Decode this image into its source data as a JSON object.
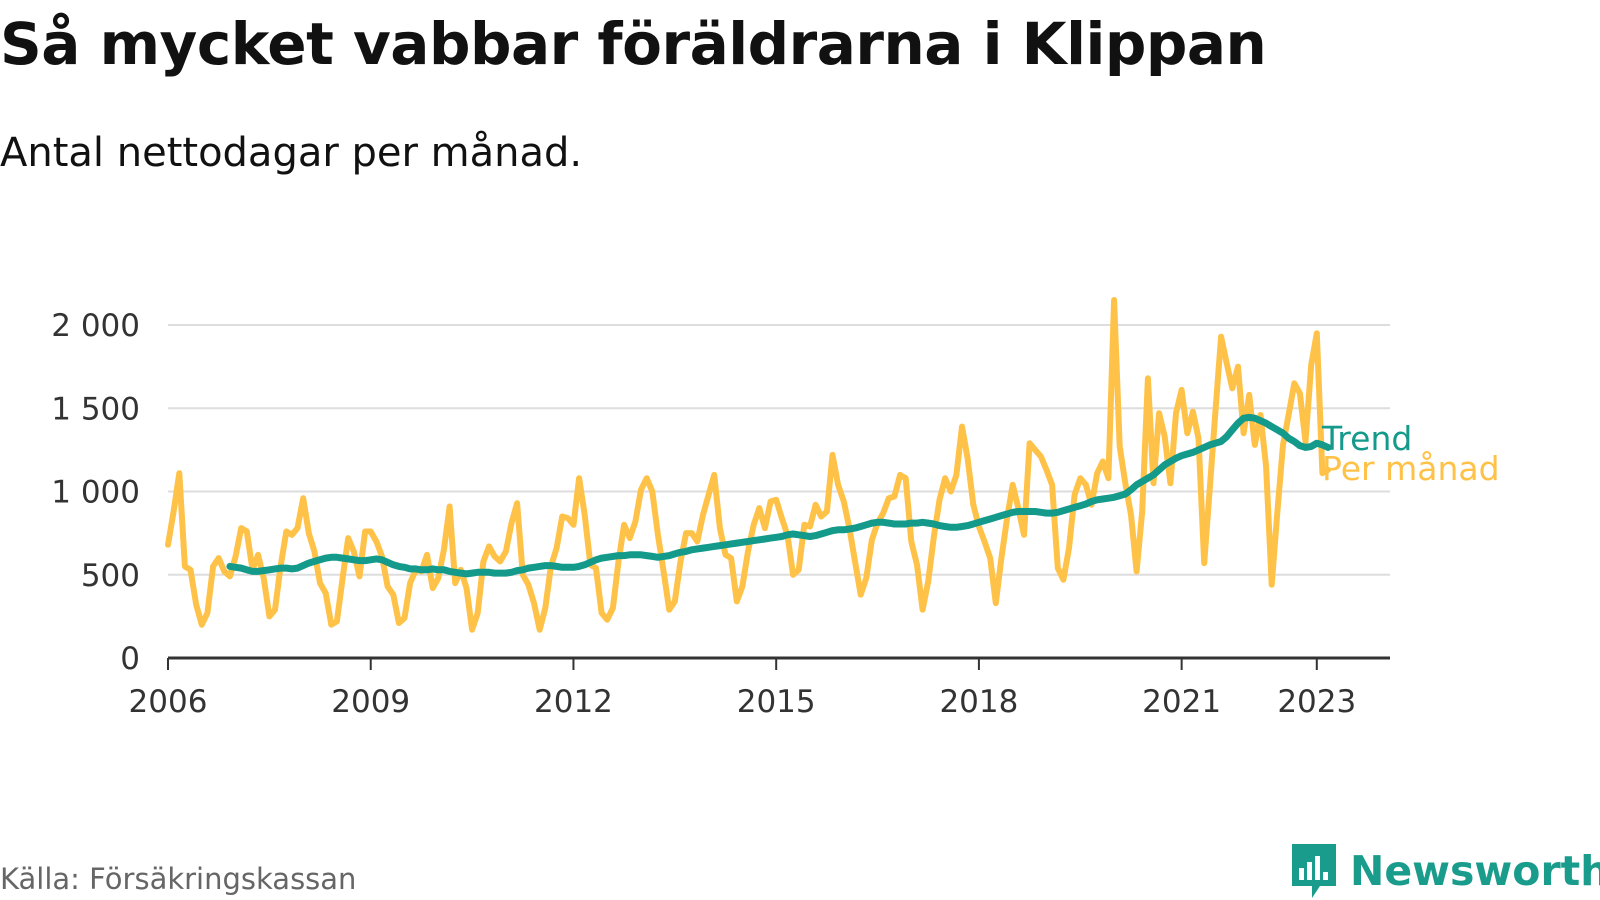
{
  "title": "Så mycket vabbar föräldrarna i Klippan",
  "subtitle": "Antal nettodagar per månad.",
  "source": "Källa: Försäkringskassan",
  "brand": {
    "name": "Newsworthy",
    "icon": "newsworthy-logo-icon",
    "color": "#1a9c8c"
  },
  "chart_data": {
    "type": "line",
    "title": "Så mycket vabbar föräldrarna i Klippan",
    "subtitle": "Antal nettodagar per månad.",
    "xlabel": "",
    "ylabel": "",
    "xlim": [
      "2006-01",
      "2024-02"
    ],
    "ylim": [
      0,
      2000
    ],
    "y_ticks": [
      0,
      500,
      1000,
      1500,
      2000
    ],
    "y_tick_labels": [
      "0",
      "500",
      "1 000",
      "1 500",
      "2 000"
    ],
    "x_ticks": [
      "2006-01",
      "2009-01",
      "2012-01",
      "2015-01",
      "2018-01",
      "2021-01",
      "2023-01"
    ],
    "x_tick_labels": [
      "2006",
      "2009",
      "2012",
      "2015",
      "2018",
      "2021",
      "2023"
    ],
    "grid": true,
    "legend": "direct labels at line ends",
    "series": [
      {
        "name": "Per månad",
        "color": "#ffc248",
        "start": "2006-01",
        "step": "month",
        "values": [
          680,
          880,
          1110,
          550,
          530,
          320,
          200,
          270,
          550,
          600,
          520,
          490,
          610,
          780,
          760,
          530,
          620,
          480,
          250,
          290,
          550,
          760,
          740,
          780,
          960,
          750,
          640,
          450,
          390,
          200,
          220,
          480,
          720,
          640,
          490,
          760,
          760,
          700,
          610,
          430,
          380,
          210,
          240,
          450,
          530,
          520,
          620,
          420,
          480,
          650,
          910,
          450,
          530,
          420,
          170,
          270,
          580,
          670,
          610,
          580,
          640,
          810,
          930,
          500,
          440,
          330,
          170,
          300,
          550,
          660,
          850,
          840,
          800,
          1080,
          860,
          560,
          540,
          270,
          230,
          300,
          580,
          800,
          720,
          820,
          1010,
          1080,
          1000,
          740,
          520,
          290,
          340,
          580,
          750,
          750,
          700,
          860,
          980,
          1100,
          780,
          620,
          600,
          340,
          430,
          640,
          800,
          900,
          780,
          940,
          950,
          840,
          740,
          500,
          530,
          800,
          790,
          920,
          850,
          880,
          1220,
          1040,
          940,
          780,
          580,
          380,
          480,
          710,
          810,
          870,
          960,
          970,
          1100,
          1080,
          700,
          560,
          290,
          460,
          730,
          950,
          1080,
          1000,
          1100,
          1390,
          1200,
          920,
          790,
          700,
          600,
          330,
          600,
          840,
          1040,
          900,
          740,
          1290,
          1250,
          1210,
          1130,
          1040,
          540,
          470,
          660,
          980,
          1080,
          1040,
          920,
          1110,
          1180,
          1080,
          2150,
          1270,
          1050,
          860,
          520,
          880,
          1680,
          1050,
          1470,
          1330,
          1050,
          1470,
          1610,
          1350,
          1480,
          1320,
          570,
          1020,
          1480,
          1930,
          1770,
          1620,
          1750,
          1350,
          1580,
          1280,
          1460,
          1150,
          440,
          880,
          1280,
          1460,
          1650,
          1590,
          1300,
          1760,
          1950,
          1110,
          1130
        ]
      },
      {
        "name": "Trend",
        "color": "#149a8a",
        "start": "2006-12",
        "step": "month",
        "values": [
          550,
          545,
          540,
          530,
          520,
          520,
          525,
          530,
          535,
          540,
          540,
          535,
          540,
          555,
          570,
          580,
          590,
          600,
          605,
          605,
          600,
          595,
          590,
          585,
          585,
          590,
          595,
          590,
          575,
          560,
          550,
          545,
          535,
          535,
          530,
          530,
          535,
          530,
          530,
          520,
          515,
          510,
          505,
          510,
          515,
          515,
          515,
          510,
          510,
          510,
          515,
          525,
          530,
          540,
          545,
          550,
          555,
          555,
          550,
          545,
          545,
          545,
          550,
          560,
          575,
          590,
          600,
          605,
          610,
          615,
          615,
          620,
          620,
          620,
          615,
          610,
          605,
          610,
          615,
          625,
          635,
          640,
          650,
          655,
          660,
          665,
          670,
          675,
          680,
          685,
          690,
          695,
          700,
          705,
          710,
          715,
          720,
          725,
          730,
          740,
          745,
          740,
          735,
          730,
          735,
          745,
          755,
          765,
          770,
          770,
          775,
          780,
          790,
          800,
          810,
          815,
          815,
          810,
          805,
          805,
          805,
          810,
          810,
          815,
          810,
          805,
          795,
          790,
          785,
          785,
          790,
          795,
          805,
          815,
          825,
          835,
          845,
          855,
          865,
          875,
          880,
          880,
          880,
          880,
          875,
          870,
          870,
          875,
          885,
          895,
          905,
          915,
          925,
          940,
          950,
          955,
          960,
          965,
          975,
          985,
          1010,
          1040,
          1060,
          1080,
          1100,
          1130,
          1160,
          1180,
          1200,
          1215,
          1225,
          1235,
          1250,
          1265,
          1280,
          1290,
          1300,
          1330,
          1370,
          1410,
          1440,
          1445,
          1440,
          1425,
          1410,
          1390,
          1370,
          1350,
          1320,
          1300,
          1275,
          1265,
          1270,
          1290,
          1280,
          1265
        ]
      }
    ]
  }
}
